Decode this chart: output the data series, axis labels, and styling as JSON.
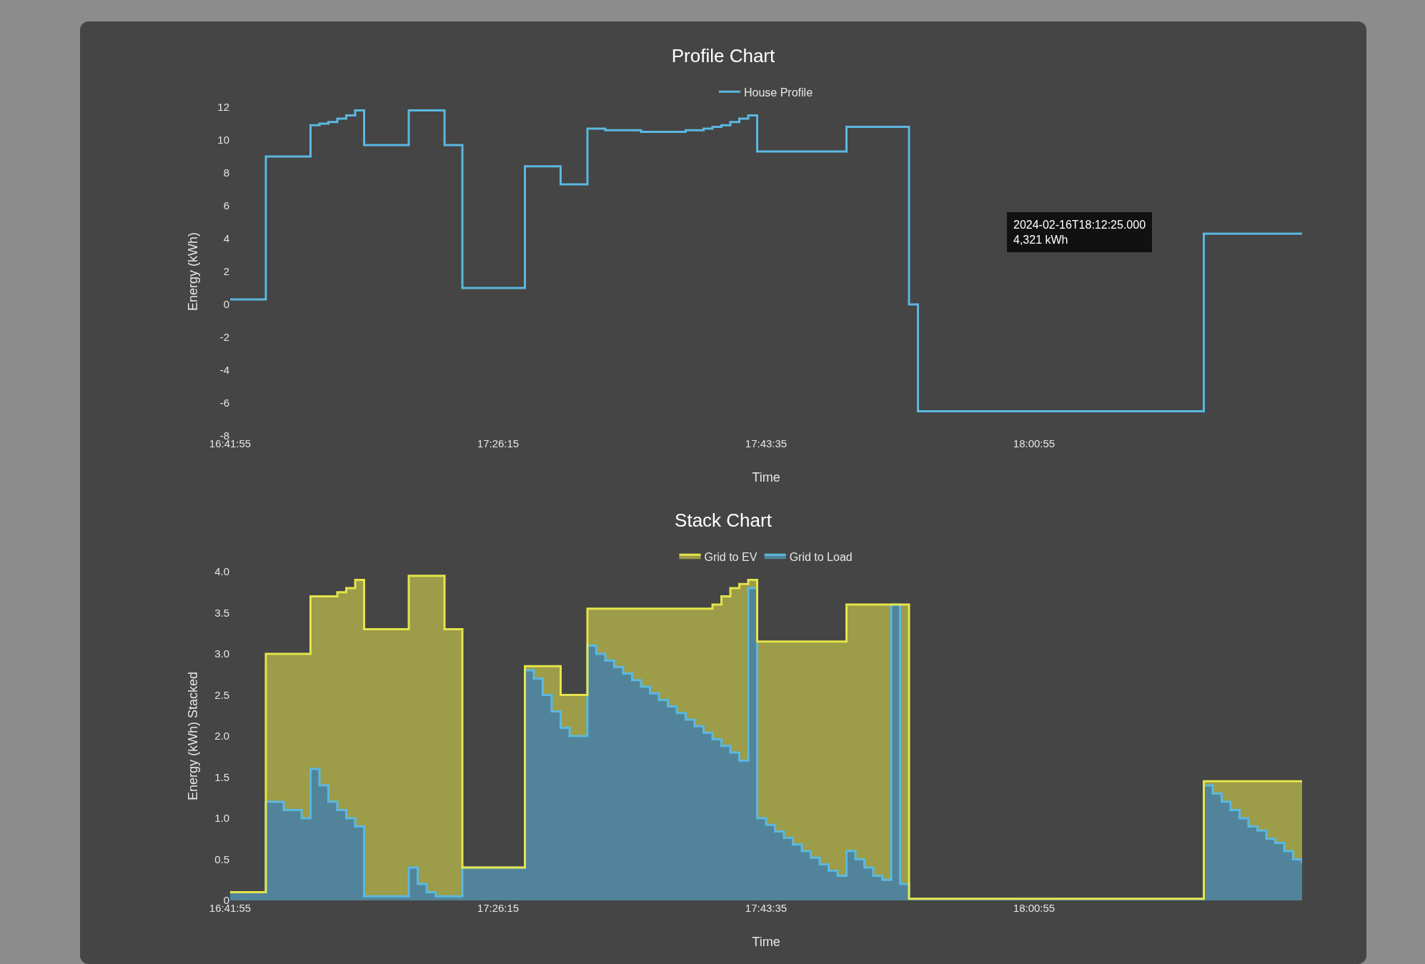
{
  "chart_data": [
    {
      "type": "step",
      "title": "Profile Chart",
      "xlabel": "Time",
      "ylabel": "Energy (kWh)",
      "legend": "top",
      "marker": "none",
      "line_style": "solid",
      "categories": [
        "16:41:55",
        null,
        null,
        null,
        null,
        null,
        null,
        null,
        null,
        null,
        null,
        null,
        null,
        null,
        null,
        null,
        null,
        null,
        null,
        null,
        null,
        null,
        null,
        null,
        null,
        null,
        null,
        null,
        null,
        null,
        "17:26:15",
        null,
        null,
        null,
        null,
        null,
        null,
        null,
        null,
        null,
        null,
        null,
        null,
        null,
        null,
        null,
        null,
        null,
        null,
        null,
        null,
        null,
        null,
        null,
        null,
        null,
        null,
        null,
        null,
        null,
        "17:43:35",
        null,
        null,
        null,
        null,
        null,
        null,
        null,
        null,
        null,
        null,
        null,
        null,
        null,
        null,
        null,
        null,
        null,
        null,
        null,
        null,
        null,
        null,
        null,
        null,
        null,
        null,
        null,
        null,
        null,
        "18:00:55",
        null,
        null,
        null,
        null,
        null,
        null,
        null,
        null,
        null,
        null,
        null,
        null,
        null,
        null,
        null,
        null,
        null,
        null,
        null,
        null,
        null,
        null,
        null,
        null,
        null,
        null,
        null,
        null,
        null,
        null
      ],
      "ylim": [
        -8,
        12
      ],
      "yticks": [
        12,
        10,
        8,
        6,
        4,
        2,
        0,
        -2,
        -4,
        -6,
        -8
      ],
      "series": [
        {
          "name": "House Profile",
          "color": "#5bb8e0",
          "values": [
            0.3,
            0.3,
            0.3,
            0.3,
            9,
            9,
            9,
            9,
            9,
            10.9,
            11,
            11.1,
            11.3,
            11.5,
            11.8,
            9.7,
            9.7,
            9.7,
            9.7,
            9.7,
            11.8,
            11.8,
            11.8,
            11.8,
            9.7,
            9.7,
            1,
            1,
            1,
            1,
            1,
            1,
            1,
            8.4,
            8.4,
            8.4,
            8.4,
            7.3,
            7.3,
            7.3,
            10.7,
            10.7,
            10.6,
            10.6,
            10.6,
            10.6,
            10.5,
            10.5,
            10.5,
            10.5,
            10.5,
            10.6,
            10.6,
            10.7,
            10.8,
            10.9,
            11.1,
            11.3,
            11.5,
            9.3,
            9.3,
            9.3,
            9.3,
            9.3,
            9.3,
            9.3,
            9.3,
            9.3,
            9.3,
            10.8,
            10.8,
            10.8,
            10.8,
            10.8,
            10.8,
            10.8,
            0,
            -6.5,
            -6.5,
            -6.5,
            -6.5,
            -6.5,
            -6.5,
            -6.5,
            -6.5,
            -6.5,
            -6.5,
            -6.5,
            -6.5,
            -6.5,
            -6.5,
            -6.5,
            -6.5,
            -6.5,
            -6.5,
            -6.5,
            -6.5,
            -6.5,
            -6.5,
            -6.5,
            -6.5,
            -6.5,
            -6.5,
            -6.5,
            -6.5,
            -6.5,
            -6.5,
            -6.5,
            -6.5,
            4.3,
            4.3,
            4.3,
            4.3,
            4.3,
            4.3,
            4.3,
            4.3,
            4.3,
            4.3,
            4.3,
            4.3
          ]
        }
      ],
      "annotations": [
        "2024-02-16T18:12:25.000\n4,321 kWh"
      ]
    },
    {
      "type": "area",
      "stacked": true,
      "title": "Stack Chart",
      "xlabel": "Time",
      "ylabel": "Energy (kWh) Stacked",
      "legend": "top",
      "marker": "none",
      "line_style": "solid",
      "categories": [
        "16:41:55",
        null,
        null,
        null,
        null,
        null,
        null,
        null,
        null,
        null,
        null,
        null,
        null,
        null,
        null,
        null,
        null,
        null,
        null,
        null,
        null,
        null,
        null,
        null,
        null,
        null,
        null,
        null,
        null,
        null,
        "17:26:15",
        null,
        null,
        null,
        null,
        null,
        null,
        null,
        null,
        null,
        null,
        null,
        null,
        null,
        null,
        null,
        null,
        null,
        null,
        null,
        null,
        null,
        null,
        null,
        null,
        null,
        null,
        null,
        null,
        null,
        "17:43:35",
        null,
        null,
        null,
        null,
        null,
        null,
        null,
        null,
        null,
        null,
        null,
        null,
        null,
        null,
        null,
        null,
        null,
        null,
        null,
        null,
        null,
        null,
        null,
        null,
        null,
        null,
        null,
        null,
        null,
        "18:00:55",
        null,
        null,
        null,
        null,
        null,
        null,
        null,
        null,
        null,
        null,
        null,
        null,
        null,
        null,
        null,
        null,
        null,
        null,
        null,
        null,
        null,
        null,
        null,
        null,
        null,
        null,
        null,
        null,
        null,
        null
      ],
      "ylim": [
        0,
        4
      ],
      "yticks": [
        {
          "value": 4,
          "label": "4.0"
        },
        3.5,
        {
          "value": 3,
          "label": "3.0"
        },
        2.5,
        {
          "value": 2,
          "label": "2.0"
        },
        1.5,
        {
          "value": 1,
          "label": "1.0"
        },
        0.5,
        0
      ],
      "series": [
        {
          "name": "Grid to Load",
          "color": "#5bb8e0",
          "values": [
            0.1,
            0.1,
            0.1,
            0.1,
            1.2,
            1.2,
            1.1,
            1.1,
            1.0,
            1.6,
            1.4,
            1.2,
            1.1,
            1.0,
            0.9,
            0.05,
            0.05,
            0.05,
            0.05,
            0.05,
            0.4,
            0.2,
            0.1,
            0.05,
            0.05,
            0.05,
            0.4,
            0.4,
            0.4,
            0.4,
            0.4,
            0.4,
            0.4,
            2.8,
            2.7,
            2.5,
            2.3,
            2.1,
            2.0,
            2.0,
            3.1,
            3.0,
            2.92,
            2.84,
            2.76,
            2.68,
            2.6,
            2.52,
            2.44,
            2.36,
            2.28,
            2.2,
            2.12,
            2.04,
            1.96,
            1.88,
            1.8,
            1.7,
            3.8,
            1.0,
            0.92,
            0.84,
            0.76,
            0.68,
            0.6,
            0.52,
            0.44,
            0.36,
            0.3,
            0.6,
            0.5,
            0.4,
            0.3,
            0.25,
            3.6,
            0.2,
            0.02,
            0.02,
            0.02,
            0.02,
            0.02,
            0.02,
            0.02,
            0.02,
            0.02,
            0.02,
            0.02,
            0.02,
            0.02,
            0.02,
            0.02,
            0.02,
            0.02,
            0.02,
            0.02,
            0.02,
            0.02,
            0.02,
            0.02,
            0.02,
            0.02,
            0.02,
            0.02,
            0.02,
            0.02,
            0.02,
            0.02,
            0.02,
            0.02,
            1.4,
            1.3,
            1.2,
            1.1,
            1.0,
            0.9,
            0.85,
            0.75,
            0.7,
            0.6,
            0.5,
            0.45
          ]
        },
        {
          "name": "Grid to EV",
          "color": "#e4e44c",
          "values": [
            0,
            0,
            0,
            0,
            1.8,
            1.8,
            1.9,
            1.9,
            2.0,
            2.1,
            2.3,
            2.5,
            2.65,
            2.8,
            3.0,
            3.25,
            3.25,
            3.25,
            3.25,
            3.25,
            3.55,
            3.75,
            3.85,
            3.9,
            3.25,
            3.25,
            0,
            0,
            0,
            0,
            0,
            0,
            0,
            0.05,
            0.15,
            0.35,
            0.55,
            0.4,
            0.5,
            0.5,
            0.45,
            0.55,
            0.63,
            0.71,
            0.79,
            0.87,
            0.95,
            1.03,
            1.11,
            1.19,
            1.27,
            1.35,
            1.43,
            1.51,
            1.64,
            1.82,
            2.0,
            2.15,
            0.1,
            2.15,
            2.23,
            2.31,
            2.39,
            2.47,
            2.55,
            2.63,
            2.71,
            2.79,
            2.85,
            3.0,
            3.1,
            3.2,
            3.3,
            3.35,
            0,
            3.4,
            0,
            0,
            0,
            0,
            0,
            0,
            0,
            0,
            0,
            0,
            0,
            0,
            0,
            0,
            0,
            0,
            0,
            0,
            0,
            0,
            0,
            0,
            0,
            0,
            0,
            0,
            0,
            0,
            0,
            0,
            0,
            0,
            0,
            0.05,
            0.15,
            0.25,
            0.35,
            0.45,
            0.55,
            0.6,
            0.7,
            0.75,
            0.85,
            0.95,
            1.0
          ]
        }
      ]
    }
  ]
}
